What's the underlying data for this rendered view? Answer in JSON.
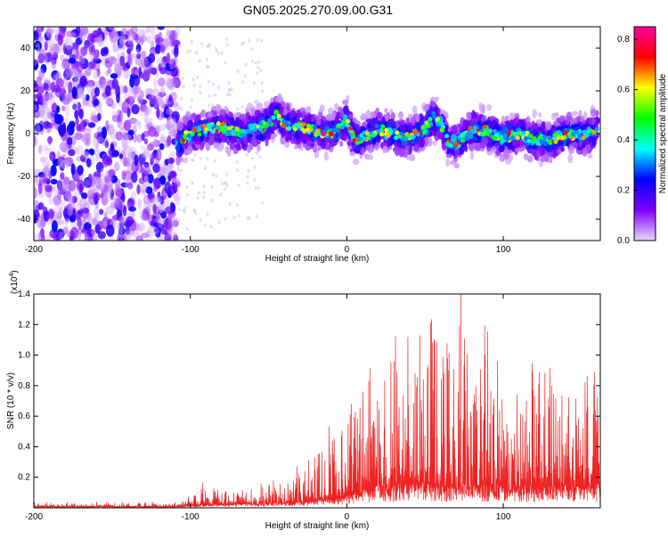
{
  "title": "GN05.2025.270.09.00.G31",
  "chart_data": [
    {
      "type": "heatmap",
      "xlabel": "Height of straight line (km)",
      "ylabel": "Frequency (Hz)",
      "xlim": [
        -200,
        162
      ],
      "ylim": [
        -50,
        50
      ],
      "x_ticks": [
        -200,
        -100,
        0,
        100
      ],
      "y_ticks": [
        -40,
        -20,
        0,
        20,
        40
      ],
      "colorbar": {
        "label": "Normalized spectral amplitude",
        "range": [
          0.0,
          0.85
        ],
        "ticks": [
          "0.0",
          "0.2",
          "0.4",
          "0.6",
          "0.8"
        ],
        "colors": [
          "#e8d8f8",
          "#8000ff",
          "#0000ff",
          "#00ffff",
          "#00ff00",
          "#ffff00",
          "#ff0000",
          "#ff00a0"
        ]
      },
      "noise_region": {
        "x": [
          -200,
          -108
        ],
        "freq": [
          -50,
          50
        ],
        "amplitude": [
          0.02,
          0.25
        ]
      },
      "signal_ridge": {
        "x": [
          -108,
          -100,
          -90,
          -80,
          -70,
          -60,
          -50,
          -45,
          -40,
          -30,
          -20,
          -10,
          -5,
          0,
          5,
          10,
          20,
          30,
          40,
          50,
          55,
          60,
          65,
          70,
          80,
          90,
          100,
          110,
          120,
          130,
          140,
          150,
          160
        ],
        "freq": [
          -4,
          0,
          2,
          3,
          0,
          2,
          4,
          10,
          4,
          3,
          1,
          0,
          3,
          6,
          -3,
          -2,
          2,
          0,
          -2,
          2,
          8,
          4,
          -4,
          -5,
          2,
          1,
          -2,
          0,
          -3,
          -3,
          0,
          -1,
          2
        ],
        "halfwidth_hz": 10,
        "peak_amplitude": 0.85
      }
    },
    {
      "type": "line",
      "xlabel": "Height of straight line (km)",
      "ylabel": "SNR (10 * v/v)",
      "y_multiplier": "(x10",
      "y_multiplier_exp": "4",
      "y_multiplier_close": ")",
      "xlim": [
        -200,
        162
      ],
      "ylim": [
        0,
        1.4
      ],
      "x_ticks": [
        -200,
        -100,
        0,
        100
      ],
      "y_ticks": [
        0.2,
        0.4,
        0.6,
        0.8,
        1.0,
        1.2,
        1.4
      ],
      "color": "#ee2222",
      "envelope": {
        "x": [
          -200,
          -110,
          -100,
          -90,
          -80,
          -60,
          -40,
          -30,
          -20,
          -10,
          0,
          10,
          15,
          20,
          30,
          40,
          50,
          60,
          70,
          73,
          80,
          90,
          100,
          110,
          120,
          130,
          140,
          150,
          162
        ],
        "floor": [
          0.01,
          0.01,
          0.02,
          0.03,
          0.03,
          0.04,
          0.05,
          0.05,
          0.08,
          0.08,
          0.1,
          0.15,
          0.18,
          0.2,
          0.2,
          0.2,
          0.22,
          0.2,
          0.18,
          0.2,
          0.2,
          0.2,
          0.2,
          0.2,
          0.18,
          0.2,
          0.2,
          0.2,
          0.2
        ],
        "peak": [
          0.04,
          0.04,
          0.08,
          0.2,
          0.12,
          0.18,
          0.22,
          0.3,
          0.36,
          0.55,
          0.68,
          0.8,
          1.0,
          1.12,
          1.18,
          1.15,
          1.25,
          1.28,
          1.2,
          1.42,
          0.95,
          1.25,
          0.92,
          0.92,
          0.98,
          1.0,
          0.88,
          0.95,
          1.0
        ]
      }
    }
  ]
}
